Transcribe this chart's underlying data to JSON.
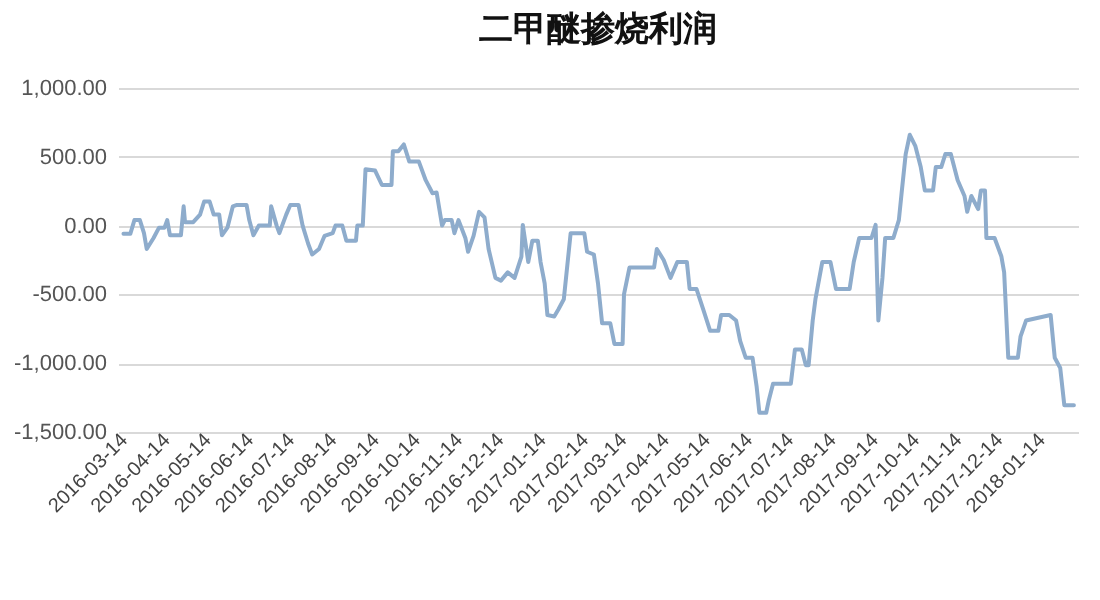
{
  "chart_data": {
    "type": "line",
    "title": "二甲醚掺烧利润",
    "x": [
      "2016-03-14",
      "2016-03-19",
      "2016-03-22",
      "2016-03-26",
      "2016-03-29",
      "2016-03-31",
      "2016-04-05",
      "2016-04-09",
      "2016-04-13",
      "2016-04-15",
      "2016-04-17",
      "2016-04-25",
      "2016-04-27",
      "2016-04-28",
      "2016-05-04",
      "2016-05-09",
      "2016-05-12",
      "2016-05-16",
      "2016-05-19",
      "2016-05-23",
      "2016-05-25",
      "2016-05-29",
      "2016-06-02",
      "2016-06-05",
      "2016-06-12",
      "2016-06-14",
      "2016-06-17",
      "2016-06-21",
      "2016-06-29",
      "2016-06-30",
      "2016-07-04",
      "2016-07-06",
      "2016-07-11",
      "2016-07-14",
      "2016-07-20",
      "2016-07-23",
      "2016-07-27",
      "2016-07-30",
      "2016-08-04",
      "2016-08-08",
      "2016-08-14",
      "2016-08-16",
      "2016-08-21",
      "2016-08-24",
      "2016-08-31",
      "2016-09-01",
      "2016-09-05",
      "2016-09-07",
      "2016-09-14",
      "2016-09-19",
      "2016-09-26",
      "2016-09-27",
      "2016-10-01",
      "2016-10-05",
      "2016-10-09",
      "2016-10-16",
      "2016-10-21",
      "2016-10-26",
      "2016-10-29",
      "2016-11-02",
      "2016-11-04",
      "2016-11-09",
      "2016-11-11",
      "2016-11-14",
      "2016-11-19",
      "2016-11-21",
      "2016-11-25",
      "2016-11-29",
      "2016-12-03",
      "2016-12-06",
      "2016-12-11",
      "2016-12-15",
      "2016-12-20",
      "2016-12-25",
      "2016-12-30",
      "2016-12-31",
      "2017-01-04",
      "2017-01-07",
      "2017-01-11",
      "2017-01-13",
      "2017-01-16",
      "2017-01-18",
      "2017-01-23",
      "2017-01-26",
      "2017-01-30",
      "2017-02-04",
      "2017-02-14",
      "2017-02-16",
      "2017-02-21",
      "2017-02-24",
      "2017-02-27",
      "2017-03-05",
      "2017-03-08",
      "2017-03-14",
      "2017-03-15",
      "2017-03-19",
      "2017-04-06",
      "2017-04-08",
      "2017-04-13",
      "2017-04-18",
      "2017-04-23",
      "2017-04-30",
      "2017-05-02",
      "2017-05-07",
      "2017-05-12",
      "2017-05-17",
      "2017-05-23",
      "2017-05-25",
      "2017-05-31",
      "2017-06-05",
      "2017-06-08",
      "2017-06-12",
      "2017-06-17",
      "2017-06-20",
      "2017-06-22",
      "2017-06-27",
      "2017-06-29",
      "2017-07-02",
      "2017-07-15",
      "2017-07-18",
      "2017-07-23",
      "2017-07-26",
      "2017-07-28",
      "2017-07-31",
      "2017-08-02",
      "2017-08-07",
      "2017-08-13",
      "2017-08-17",
      "2017-08-27",
      "2017-08-30",
      "2017-09-03",
      "2017-09-12",
      "2017-09-15",
      "2017-09-17",
      "2017-09-20",
      "2017-09-22",
      "2017-09-28",
      "2017-10-02",
      "2017-10-04",
      "2017-10-07",
      "2017-10-10",
      "2017-10-14",
      "2017-10-18",
      "2017-10-21",
      "2017-10-27",
      "2017-10-29",
      "2017-11-02",
      "2017-11-05",
      "2017-11-09",
      "2017-11-14",
      "2017-11-19",
      "2017-11-21",
      "2017-11-24",
      "2017-11-29",
      "2017-12-01",
      "2017-12-04",
      "2017-12-05",
      "2017-12-11",
      "2017-12-16",
      "2017-12-18",
      "2017-12-21",
      "2017-12-28",
      "2017-12-30",
      "2018-01-03",
      "2018-01-21",
      "2018-01-24",
      "2018-01-28",
      "2018-01-31",
      "2018-02-07"
    ],
    "series": [
      {
        "color": "#8eaccc",
        "values": [
          -60,
          -60,
          40,
          40,
          -55,
          -170,
          -90,
          -15,
          -15,
          40,
          -70,
          -70,
          140,
          25,
          25,
          80,
          175,
          175,
          80,
          80,
          -70,
          -15,
          140,
          150,
          150,
          40,
          -70,
          0,
          0,
          140,
          0,
          -55,
          80,
          150,
          150,
          0,
          -130,
          -210,
          -170,
          -75,
          -55,
          0,
          0,
          -110,
          -110,
          0,
          0,
          410,
          400,
          295,
          295,
          540,
          540,
          590,
          465,
          465,
          330,
          235,
          240,
          0,
          40,
          40,
          -55,
          40,
          -90,
          -190,
          -75,
          100,
          60,
          -170,
          -380,
          -400,
          -340,
          -380,
          -225,
          5,
          -265,
          -110,
          -110,
          -265,
          -420,
          -650,
          -660,
          -610,
          -535,
          -55,
          -55,
          -190,
          -210,
          -420,
          -710,
          -710,
          -860,
          -860,
          -500,
          -305,
          -305,
          -170,
          -250,
          -380,
          -265,
          -265,
          -460,
          -460,
          -610,
          -765,
          -765,
          -650,
          -650,
          -690,
          -840,
          -960,
          -960,
          -1170,
          -1360,
          -1360,
          -1265,
          -1150,
          -1150,
          -900,
          -900,
          -1015,
          -1015,
          -690,
          -535,
          -265,
          -265,
          -460,
          -460,
          -265,
          -90,
          -90,
          5,
          -690,
          -380,
          -90,
          -90,
          40,
          235,
          520,
          660,
          580,
          425,
          255,
          255,
          425,
          425,
          520,
          520,
          330,
          215,
          100,
          215,
          120,
          255,
          255,
          -90,
          -90,
          -225,
          -340,
          -960,
          -960,
          -805,
          -690,
          -650,
          -960,
          -1035,
          -1305,
          -1305
        ]
      }
    ],
    "xlim": [
      "2016-03-10",
      "2018-02-10"
    ],
    "xticks": [
      "2016-03-14",
      "2016-04-14",
      "2016-05-14",
      "2016-06-14",
      "2016-07-14",
      "2016-08-14",
      "2016-09-14",
      "2016-10-14",
      "2016-11-14",
      "2016-12-14",
      "2017-01-14",
      "2017-02-14",
      "2017-03-14",
      "2017-04-14",
      "2017-05-14",
      "2017-06-14",
      "2017-07-14",
      "2017-08-14",
      "2017-09-14",
      "2017-10-14",
      "2017-11-14",
      "2017-12-14",
      "2018-01-14"
    ],
    "ylim": [
      -1500,
      1000
    ],
    "yticks": [
      {
        "value": -1500,
        "label": "-1,500.00"
      },
      {
        "value": -1000,
        "label": "-1,000.00"
      },
      {
        "value": -500,
        "label": "-500.00"
      },
      {
        "value": 0,
        "label": "0.00"
      },
      {
        "value": 500,
        "label": "500.00"
      },
      {
        "value": 1000,
        "label": "1,000.00"
      }
    ],
    "grid": "y",
    "marker": "none",
    "line_style": "solid"
  }
}
